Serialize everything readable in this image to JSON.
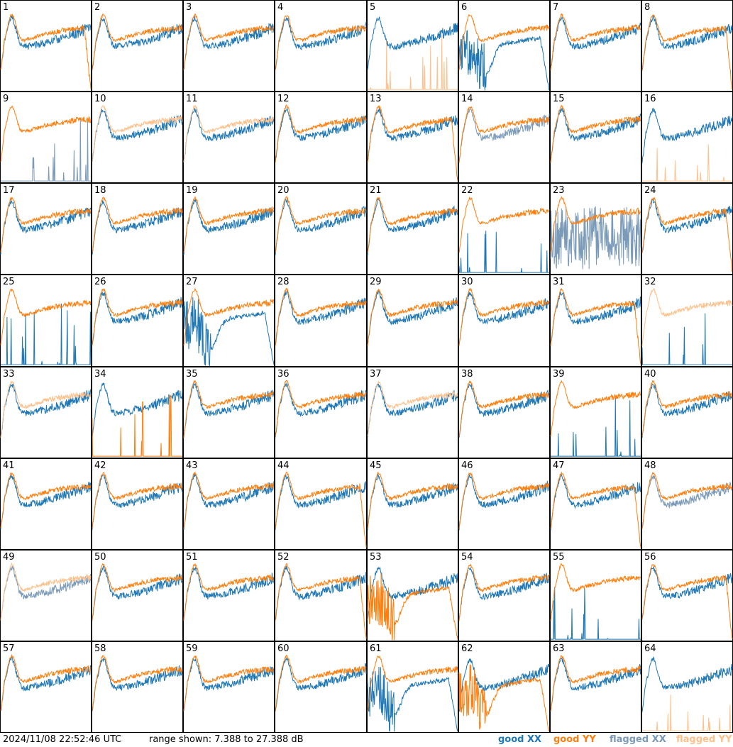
{
  "footer": {
    "timestamp": "2024/11/08 22:52:46 UTC",
    "range_text": "range shown: 7.388 to 27.388 dB"
  },
  "legend": [
    {
      "label": "good XX",
      "color": "#1f77b4"
    },
    {
      "label": "good YY",
      "color": "#ff7f0e"
    },
    {
      "label": "flagged XX",
      "color": "#7a9ab8"
    },
    {
      "label": "flagged YY",
      "color": "#ffc08a"
    }
  ],
  "chart_data": {
    "type": "line",
    "layout": "grid 8x8",
    "ylim": [
      7.388,
      27.388
    ],
    "yunit": "dB",
    "tiles": [
      {
        "label": "1",
        "xx": "good",
        "yy": "good",
        "xx_shape": "normal",
        "yy_shape": "drop_end"
      },
      {
        "label": "2",
        "xx": "good",
        "yy": "good",
        "xx_shape": "normal",
        "yy_shape": "normal"
      },
      {
        "label": "3",
        "xx": "good",
        "yy": "good",
        "xx_shape": "normal",
        "yy_shape": "normal"
      },
      {
        "label": "4",
        "xx": "good",
        "yy": "good",
        "xx_shape": "normal",
        "yy_shape": "normal"
      },
      {
        "label": "5",
        "xx": "good",
        "yy": "flagged",
        "xx_shape": "normal",
        "yy_shape": "spikes"
      },
      {
        "label": "6",
        "xx": "good",
        "yy": "good",
        "xx_shape": "low_drop",
        "yy_shape": "normal"
      },
      {
        "label": "7",
        "xx": "good",
        "yy": "good",
        "xx_shape": "normal",
        "yy_shape": "normal"
      },
      {
        "label": "8",
        "xx": "good",
        "yy": "good",
        "xx_shape": "normal",
        "yy_shape": "drop_end"
      },
      {
        "label": "9",
        "xx": "flagged",
        "yy": "good",
        "xx_shape": "spikes",
        "yy_shape": "normal"
      },
      {
        "label": "10",
        "xx": "good",
        "yy": "flagged",
        "xx_shape": "normal",
        "yy_shape": "normal"
      },
      {
        "label": "11",
        "xx": "good",
        "yy": "flagged",
        "xx_shape": "normal",
        "yy_shape": "normal"
      },
      {
        "label": "12",
        "xx": "good",
        "yy": "good",
        "xx_shape": "normal",
        "yy_shape": "normal"
      },
      {
        "label": "13",
        "xx": "good",
        "yy": "good",
        "xx_shape": "normal",
        "yy_shape": "drop_end"
      },
      {
        "label": "14",
        "xx": "flagged",
        "yy": "good",
        "xx_shape": "normal",
        "yy_shape": "normal"
      },
      {
        "label": "15",
        "xx": "good",
        "yy": "good",
        "xx_shape": "normal",
        "yy_shape": "normal"
      },
      {
        "label": "16",
        "xx": "good",
        "yy": "flagged",
        "xx_shape": "normal",
        "yy_shape": "spikes"
      },
      {
        "label": "17",
        "xx": "good",
        "yy": "good",
        "xx_shape": "normal",
        "yy_shape": "normal"
      },
      {
        "label": "18",
        "xx": "good",
        "yy": "good",
        "xx_shape": "normal",
        "yy_shape": "normal"
      },
      {
        "label": "19",
        "xx": "good",
        "yy": "good",
        "xx_shape": "normal",
        "yy_shape": "normal"
      },
      {
        "label": "20",
        "xx": "good",
        "yy": "good",
        "xx_shape": "normal",
        "yy_shape": "normal"
      },
      {
        "label": "21",
        "xx": "good",
        "yy": "good",
        "xx_shape": "normal",
        "yy_shape": "normal"
      },
      {
        "label": "22",
        "xx": "good",
        "yy": "good",
        "xx_shape": "spikes",
        "yy_shape": "normal"
      },
      {
        "label": "23",
        "xx": "flagged",
        "yy": "good",
        "xx_shape": "noisy",
        "yy_shape": "normal"
      },
      {
        "label": "24",
        "xx": "good",
        "yy": "good",
        "xx_shape": "normal",
        "yy_shape": "drop_end"
      },
      {
        "label": "25",
        "xx": "good",
        "yy": "good",
        "xx_shape": "spikes",
        "yy_shape": "normal"
      },
      {
        "label": "26",
        "xx": "good",
        "yy": "good",
        "xx_shape": "normal",
        "yy_shape": "normal"
      },
      {
        "label": "27",
        "xx": "good",
        "yy": "good",
        "xx_shape": "low_drop",
        "yy_shape": "normal"
      },
      {
        "label": "28",
        "xx": "good",
        "yy": "good",
        "xx_shape": "normal",
        "yy_shape": "normal"
      },
      {
        "label": "29",
        "xx": "good",
        "yy": "good",
        "xx_shape": "normal",
        "yy_shape": "normal"
      },
      {
        "label": "30",
        "xx": "good",
        "yy": "good",
        "xx_shape": "normal",
        "yy_shape": "normal"
      },
      {
        "label": "31",
        "xx": "good",
        "yy": "good",
        "xx_shape": "normal",
        "yy_shape": "drop_end"
      },
      {
        "label": "32",
        "xx": "good",
        "yy": "flagged",
        "xx_shape": "spikes",
        "yy_shape": "normal"
      },
      {
        "label": "33",
        "xx": "good",
        "yy": "flagged",
        "xx_shape": "normal",
        "yy_shape": "normal"
      },
      {
        "label": "34",
        "xx": "good",
        "yy": "good",
        "xx_shape": "normal",
        "yy_shape": "spikes"
      },
      {
        "label": "35",
        "xx": "good",
        "yy": "good",
        "xx_shape": "normal",
        "yy_shape": "normal"
      },
      {
        "label": "36",
        "xx": "good",
        "yy": "good",
        "xx_shape": "normal",
        "yy_shape": "normal"
      },
      {
        "label": "37",
        "xx": "good",
        "yy": "flagged",
        "xx_shape": "normal",
        "yy_shape": "normal"
      },
      {
        "label": "38",
        "xx": "good",
        "yy": "good",
        "xx_shape": "normal",
        "yy_shape": "normal"
      },
      {
        "label": "39",
        "xx": "good",
        "yy": "good",
        "xx_shape": "spikes",
        "yy_shape": "normal"
      },
      {
        "label": "40",
        "xx": "good",
        "yy": "good",
        "xx_shape": "normal",
        "yy_shape": "normal"
      },
      {
        "label": "41",
        "xx": "good",
        "yy": "good",
        "xx_shape": "normal",
        "yy_shape": "normal"
      },
      {
        "label": "42",
        "xx": "good",
        "yy": "good",
        "xx_shape": "normal",
        "yy_shape": "normal"
      },
      {
        "label": "43",
        "xx": "good",
        "yy": "good",
        "xx_shape": "normal",
        "yy_shape": "normal"
      },
      {
        "label": "44",
        "xx": "good",
        "yy": "good",
        "xx_shape": "normal",
        "yy_shape": "drop_end"
      },
      {
        "label": "45",
        "xx": "good",
        "yy": "good",
        "xx_shape": "normal",
        "yy_shape": "normal"
      },
      {
        "label": "46",
        "xx": "good",
        "yy": "good",
        "xx_shape": "normal",
        "yy_shape": "normal"
      },
      {
        "label": "47",
        "xx": "good",
        "yy": "good",
        "xx_shape": "normal",
        "yy_shape": "drop_end"
      },
      {
        "label": "48",
        "xx": "flagged",
        "yy": "good",
        "xx_shape": "normal",
        "yy_shape": "normal"
      },
      {
        "label": "49",
        "xx": "flagged",
        "yy": "flagged",
        "xx_shape": "normal",
        "yy_shape": "normal"
      },
      {
        "label": "50",
        "xx": "good",
        "yy": "good",
        "xx_shape": "normal",
        "yy_shape": "normal"
      },
      {
        "label": "51",
        "xx": "good",
        "yy": "good",
        "xx_shape": "normal",
        "yy_shape": "normal"
      },
      {
        "label": "52",
        "xx": "good",
        "yy": "good",
        "xx_shape": "normal",
        "yy_shape": "drop_end"
      },
      {
        "label": "53",
        "xx": "good",
        "yy": "good",
        "xx_shape": "normal",
        "yy_shape": "low_drop"
      },
      {
        "label": "54",
        "xx": "good",
        "yy": "good",
        "xx_shape": "normal",
        "yy_shape": "normal"
      },
      {
        "label": "55",
        "xx": "good",
        "yy": "good",
        "xx_shape": "spikes",
        "yy_shape": "normal"
      },
      {
        "label": "56",
        "xx": "good",
        "yy": "good",
        "xx_shape": "normal",
        "yy_shape": "drop_end"
      },
      {
        "label": "57",
        "xx": "good",
        "yy": "good",
        "xx_shape": "normal",
        "yy_shape": "normal"
      },
      {
        "label": "58",
        "xx": "good",
        "yy": "good",
        "xx_shape": "normal",
        "yy_shape": "normal"
      },
      {
        "label": "59",
        "xx": "good",
        "yy": "good",
        "xx_shape": "normal",
        "yy_shape": "normal"
      },
      {
        "label": "60",
        "xx": "good",
        "yy": "good",
        "xx_shape": "normal",
        "yy_shape": "normal"
      },
      {
        "label": "61",
        "xx": "good",
        "yy": "good",
        "xx_shape": "low_drop",
        "yy_shape": "normal"
      },
      {
        "label": "62",
        "xx": "good",
        "yy": "good",
        "xx_shape": "normal",
        "yy_shape": "low_drop"
      },
      {
        "label": "63",
        "xx": "good",
        "yy": "good",
        "xx_shape": "normal",
        "yy_shape": "normal"
      },
      {
        "label": "64",
        "xx": "good",
        "yy": "flagged",
        "xx_shape": "normal",
        "yy_shape": "spikes"
      }
    ]
  }
}
